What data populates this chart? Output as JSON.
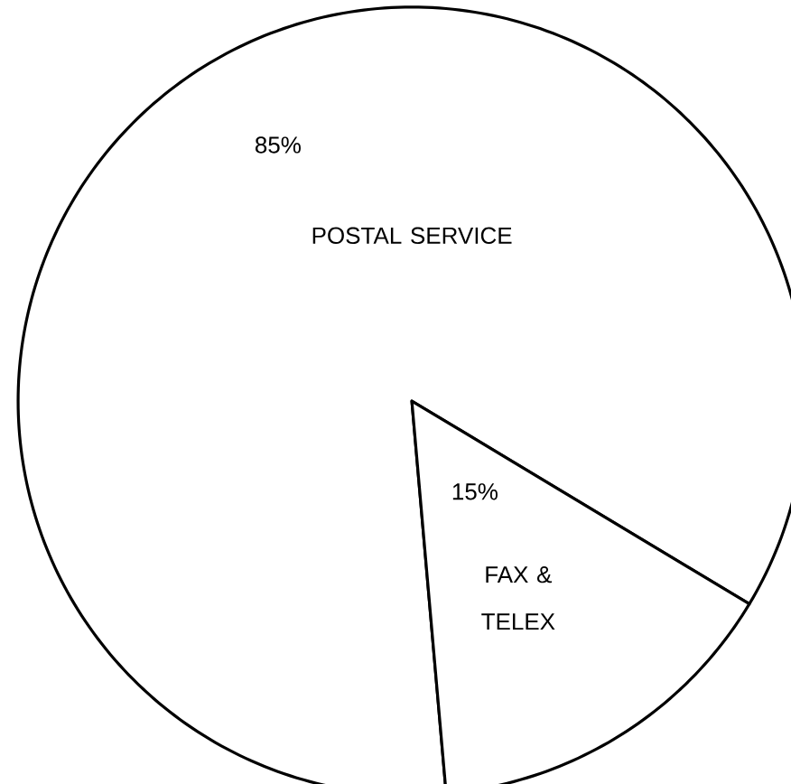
{
  "chart_data": {
    "type": "pie",
    "categories": [
      "POSTAL SERVICE",
      "FAX & TELEX"
    ],
    "values": [
      85,
      15
    ],
    "value_labels": [
      "85%",
      "15%"
    ],
    "colors": [
      "#ffffff",
      "#ffffff"
    ]
  }
}
